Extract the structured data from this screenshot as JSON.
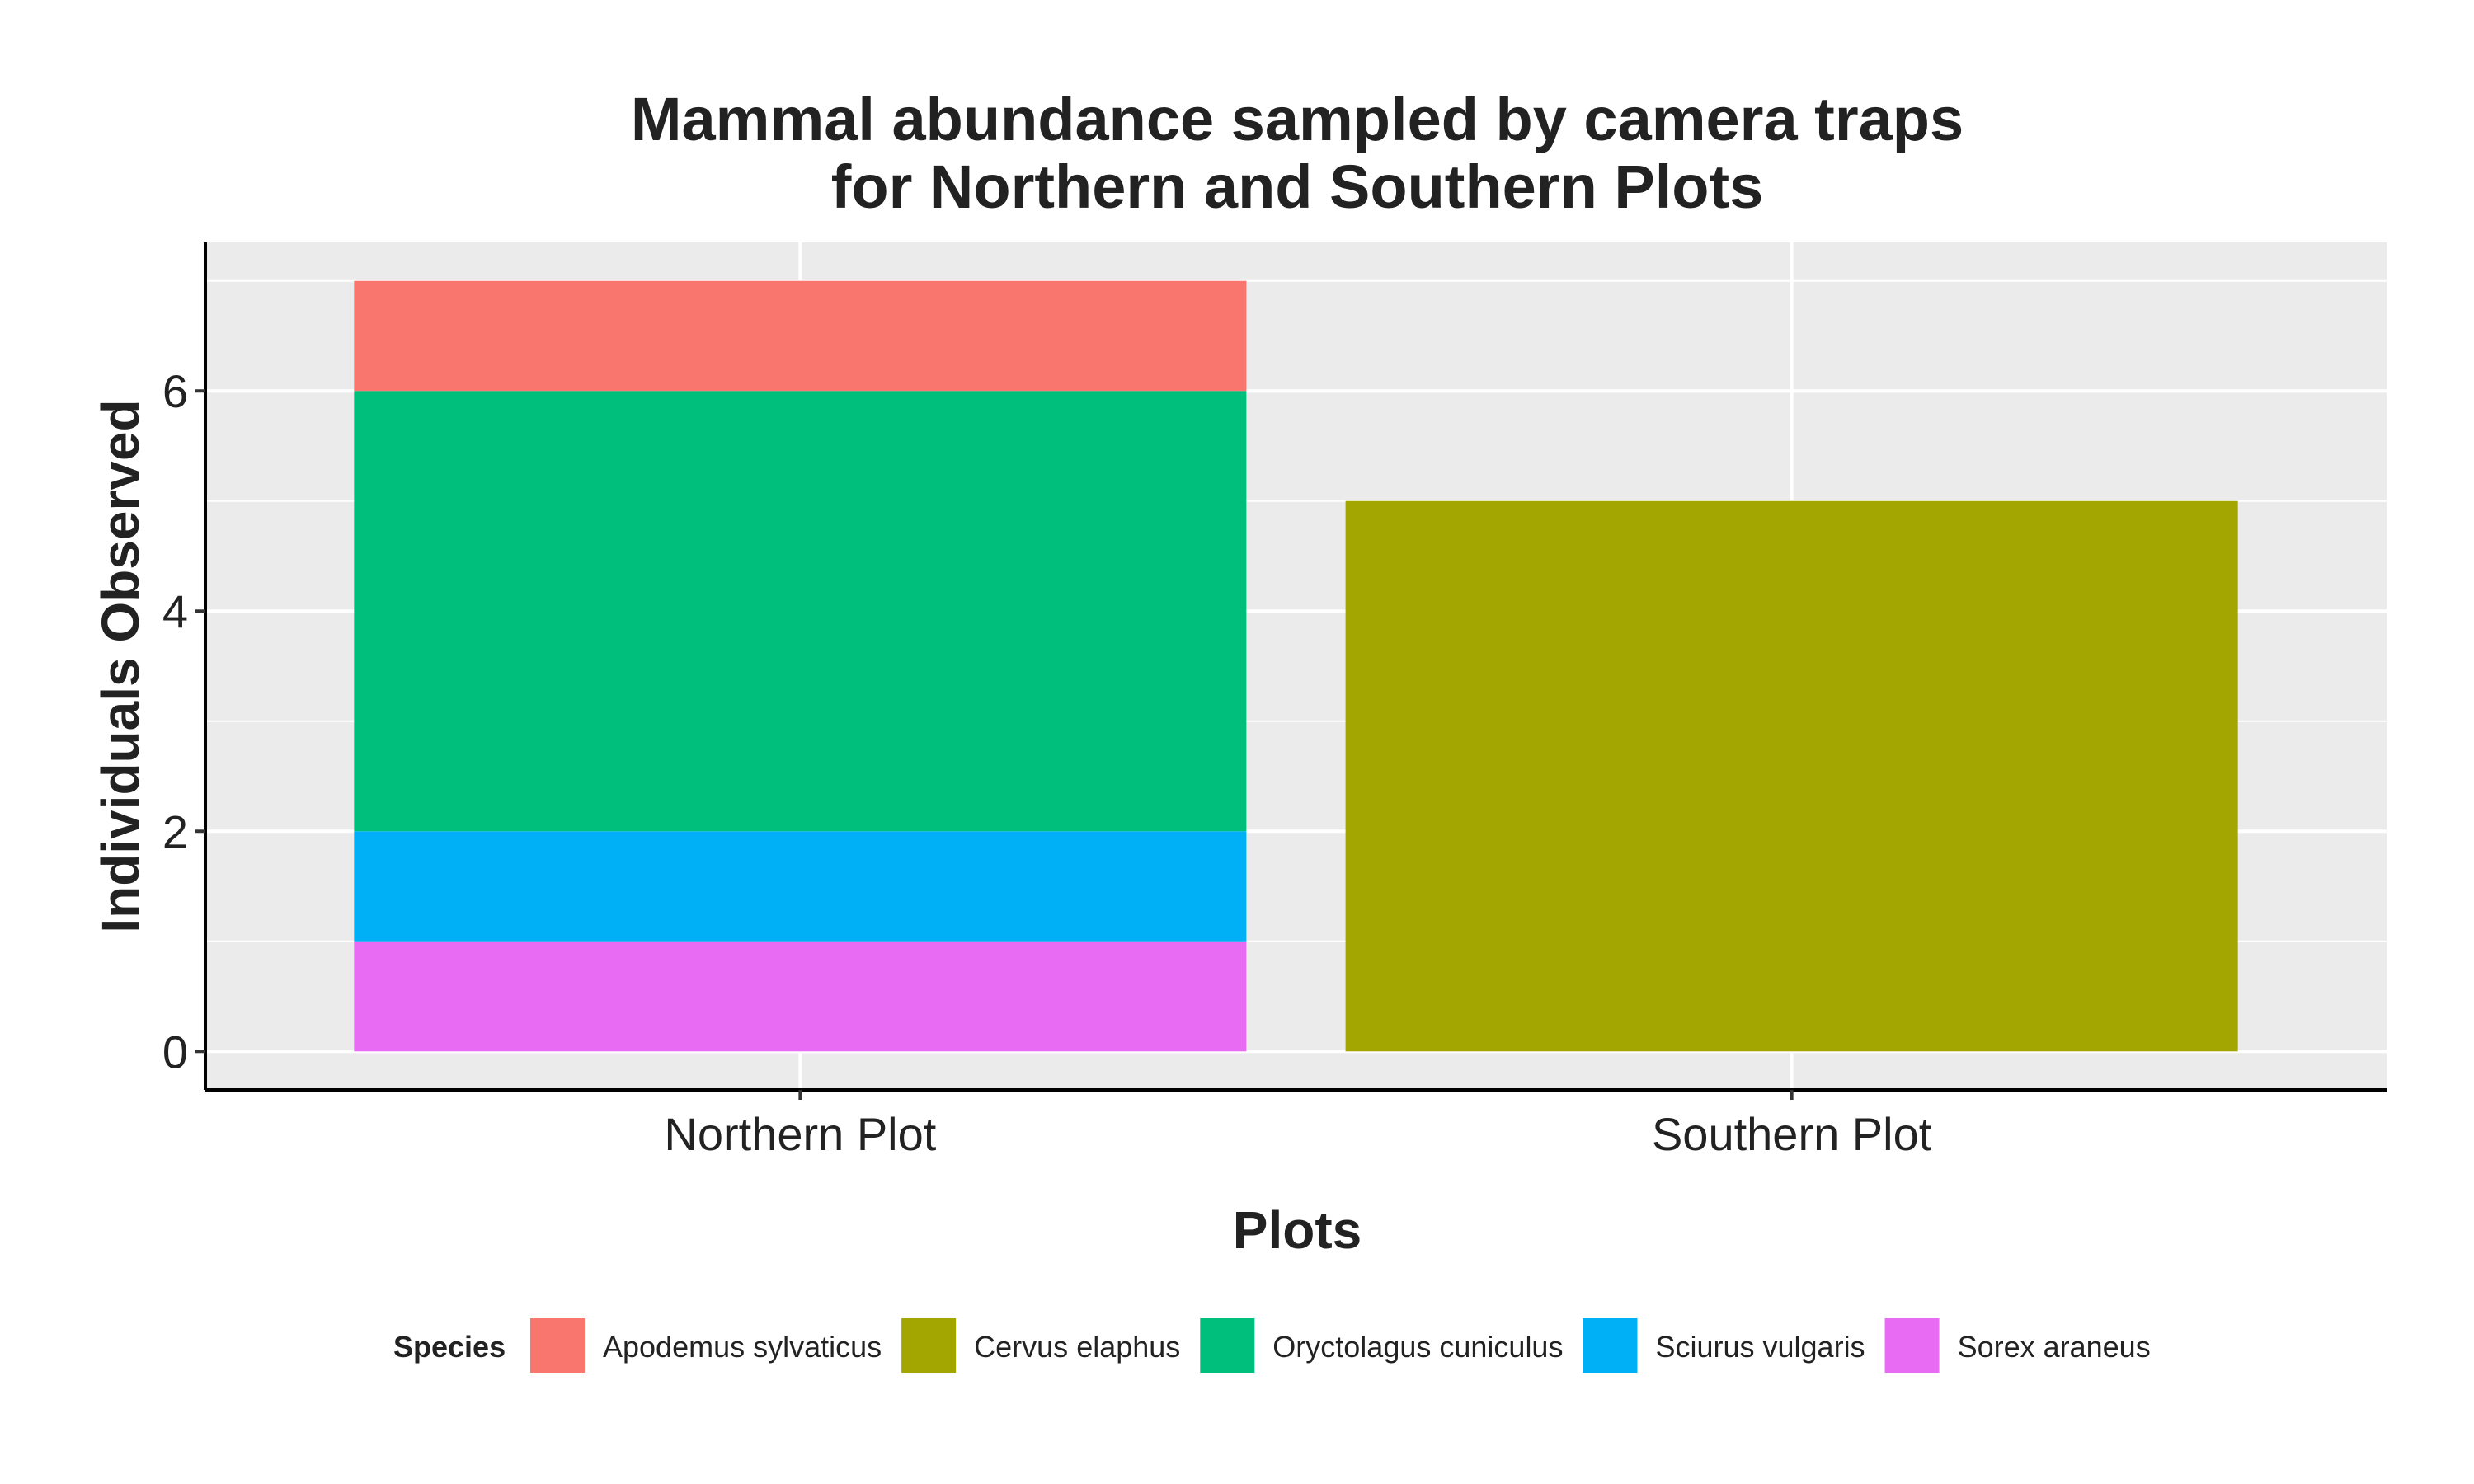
{
  "chart_data": {
    "type": "bar",
    "stacked": true,
    "title": [
      "Mammal abundance sampled by camera traps",
      "for Northern and Southern Plots"
    ],
    "xlabel": "Plots",
    "ylabel": "Individuals Observed",
    "categories": [
      "Northern Plot",
      "Southern Plot"
    ],
    "ylim": [
      -0.35,
      7.35
    ],
    "yticks": [
      0,
      2,
      4,
      6
    ],
    "grid": true,
    "legend": {
      "title": "Species",
      "position": "bottom"
    },
    "series": [
      {
        "name": "Apodemus sylvaticus",
        "color": "#F8766D",
        "values": [
          1,
          0
        ]
      },
      {
        "name": "Cervus elaphus",
        "color": "#A3A500",
        "values": [
          0,
          5
        ]
      },
      {
        "name": "Oryctolagus cuniculus",
        "color": "#00BF7D",
        "values": [
          4,
          0
        ]
      },
      {
        "name": "Sciurus vulgaris",
        "color": "#00B0F6",
        "values": [
          1,
          0
        ]
      },
      {
        "name": "Sorex araneus",
        "color": "#E76BF3",
        "values": [
          1,
          0
        ]
      }
    ],
    "panel_background": "#EBEBEB",
    "grid_color": "#FFFFFF"
  }
}
